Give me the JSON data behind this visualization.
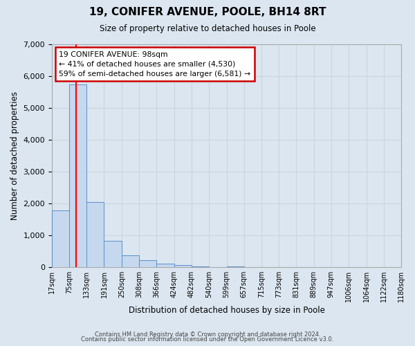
{
  "title": "19, CONIFER AVENUE, POOLE, BH14 8RT",
  "subtitle": "Size of property relative to detached houses in Poole",
  "xlabel": "Distribution of detached houses by size in Poole",
  "ylabel": "Number of detached properties",
  "bin_labels": [
    "17sqm",
    "75sqm",
    "133sqm",
    "191sqm",
    "250sqm",
    "308sqm",
    "366sqm",
    "424sqm",
    "482sqm",
    "540sqm",
    "599sqm",
    "657sqm",
    "715sqm",
    "773sqm",
    "831sqm",
    "889sqm",
    "947sqm",
    "1006sqm",
    "1064sqm",
    "1122sqm",
    "1180sqm"
  ],
  "bin_edges": [
    17,
    75,
    133,
    191,
    250,
    308,
    366,
    424,
    482,
    540,
    599,
    657,
    715,
    773,
    831,
    889,
    947,
    1006,
    1064,
    1122,
    1180
  ],
  "bar_heights": [
    1780,
    5730,
    2050,
    830,
    370,
    230,
    105,
    60,
    30,
    5,
    30,
    0,
    0,
    0,
    0,
    0,
    0,
    0,
    0,
    0
  ],
  "bar_color": "#c5d8ed",
  "bar_edge_color": "#5b8fc9",
  "red_line_x": 98,
  "annotation_line1": "19 CONIFER AVENUE: 98sqm",
  "annotation_line2": "← 41% of detached houses are smaller (4,530)",
  "annotation_line3": "59% of semi-detached houses are larger (6,581) →",
  "annotation_box_color": "#ffffff",
  "annotation_box_edge_color": "#cc0000",
  "ylim": [
    0,
    7000
  ],
  "yticks": [
    0,
    1000,
    2000,
    3000,
    4000,
    5000,
    6000,
    7000
  ],
  "grid_color": "#c8d4e0",
  "background_color": "#dce6f0",
  "footer_line1": "Contains HM Land Registry data © Crown copyright and database right 2024.",
  "footer_line2": "Contains public sector information licensed under the Open Government Licence v3.0."
}
